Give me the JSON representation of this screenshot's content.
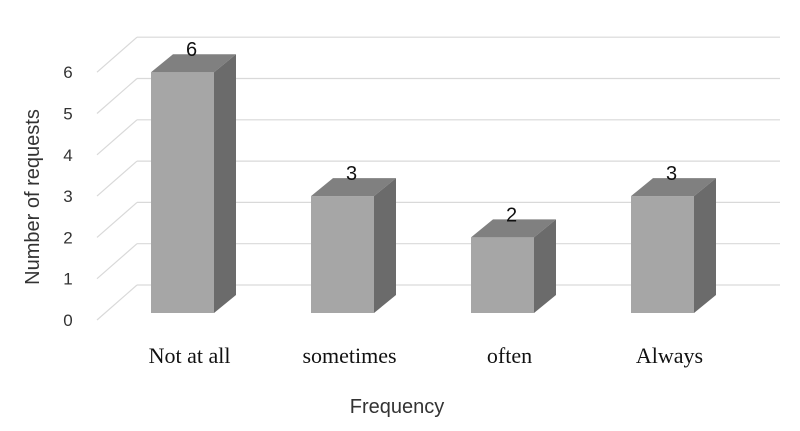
{
  "chart_data": {
    "type": "bar",
    "style": "3d-column",
    "categories": [
      "Not at all",
      "sometimes",
      "often",
      "Always"
    ],
    "series": [
      {
        "values": [
          6,
          3,
          2,
          3
        ]
      }
    ],
    "data_labels": [
      "6",
      "3",
      "2",
      "3"
    ],
    "xlabel": "Frequency",
    "ylabel": "Number of requests",
    "ylim": [
      0,
      6
    ],
    "yticks": [
      "0",
      "1",
      "2",
      "3",
      "4",
      "5",
      "6"
    ],
    "grid": true,
    "legend": "none",
    "colors": {
      "front": "#a6a6a6",
      "side": "#6b6b6b",
      "top": "#808080",
      "grid": "#d9d9d9"
    }
  }
}
